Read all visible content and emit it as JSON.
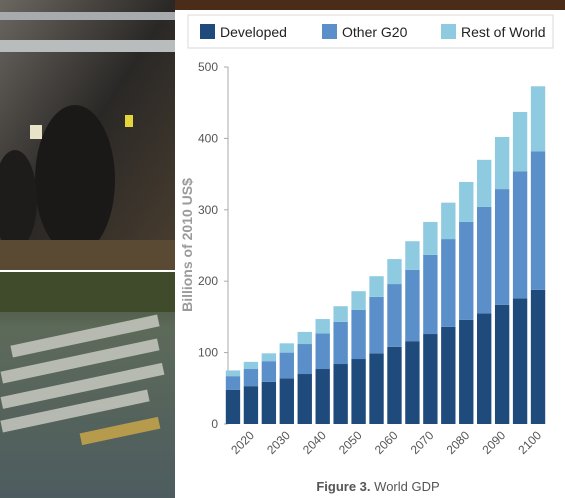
{
  "chart_data": {
    "type": "stacked_bar",
    "y_label": "Billions of 2010 US$",
    "caption_label": "Figure 3.",
    "caption_text": "World GDP",
    "categories": [
      null,
      "2020",
      null,
      "2030",
      null,
      "2040",
      null,
      "2050",
      null,
      "2060",
      null,
      "2070",
      null,
      "2080",
      null,
      "2090",
      null,
      "2100"
    ],
    "series": [
      {
        "name": "Developed",
        "color": "#1f4a7c",
        "values": [
          48,
          53,
          59,
          64,
          70,
          77,
          84,
          91,
          99,
          108,
          116,
          126,
          136,
          146,
          155,
          167,
          176,
          188
        ]
      },
      {
        "name": "Other G20",
        "color": "#5b8fc9",
        "values": [
          19,
          24,
          29,
          36,
          42,
          50,
          59,
          69,
          79,
          88,
          100,
          111,
          123,
          137,
          149,
          162,
          178,
          194
        ]
      },
      {
        "name": "Rest of World",
        "color": "#8fcbe0",
        "values": [
          8,
          10,
          11,
          13,
          17,
          20,
          22,
          26,
          29,
          35,
          40,
          46,
          51,
          56,
          66,
          73,
          83,
          91
        ]
      }
    ],
    "ylim": [
      0,
      500
    ],
    "yticks": [
      0,
      100,
      200,
      300,
      400,
      500
    ],
    "grid": false,
    "legend": "top"
  }
}
